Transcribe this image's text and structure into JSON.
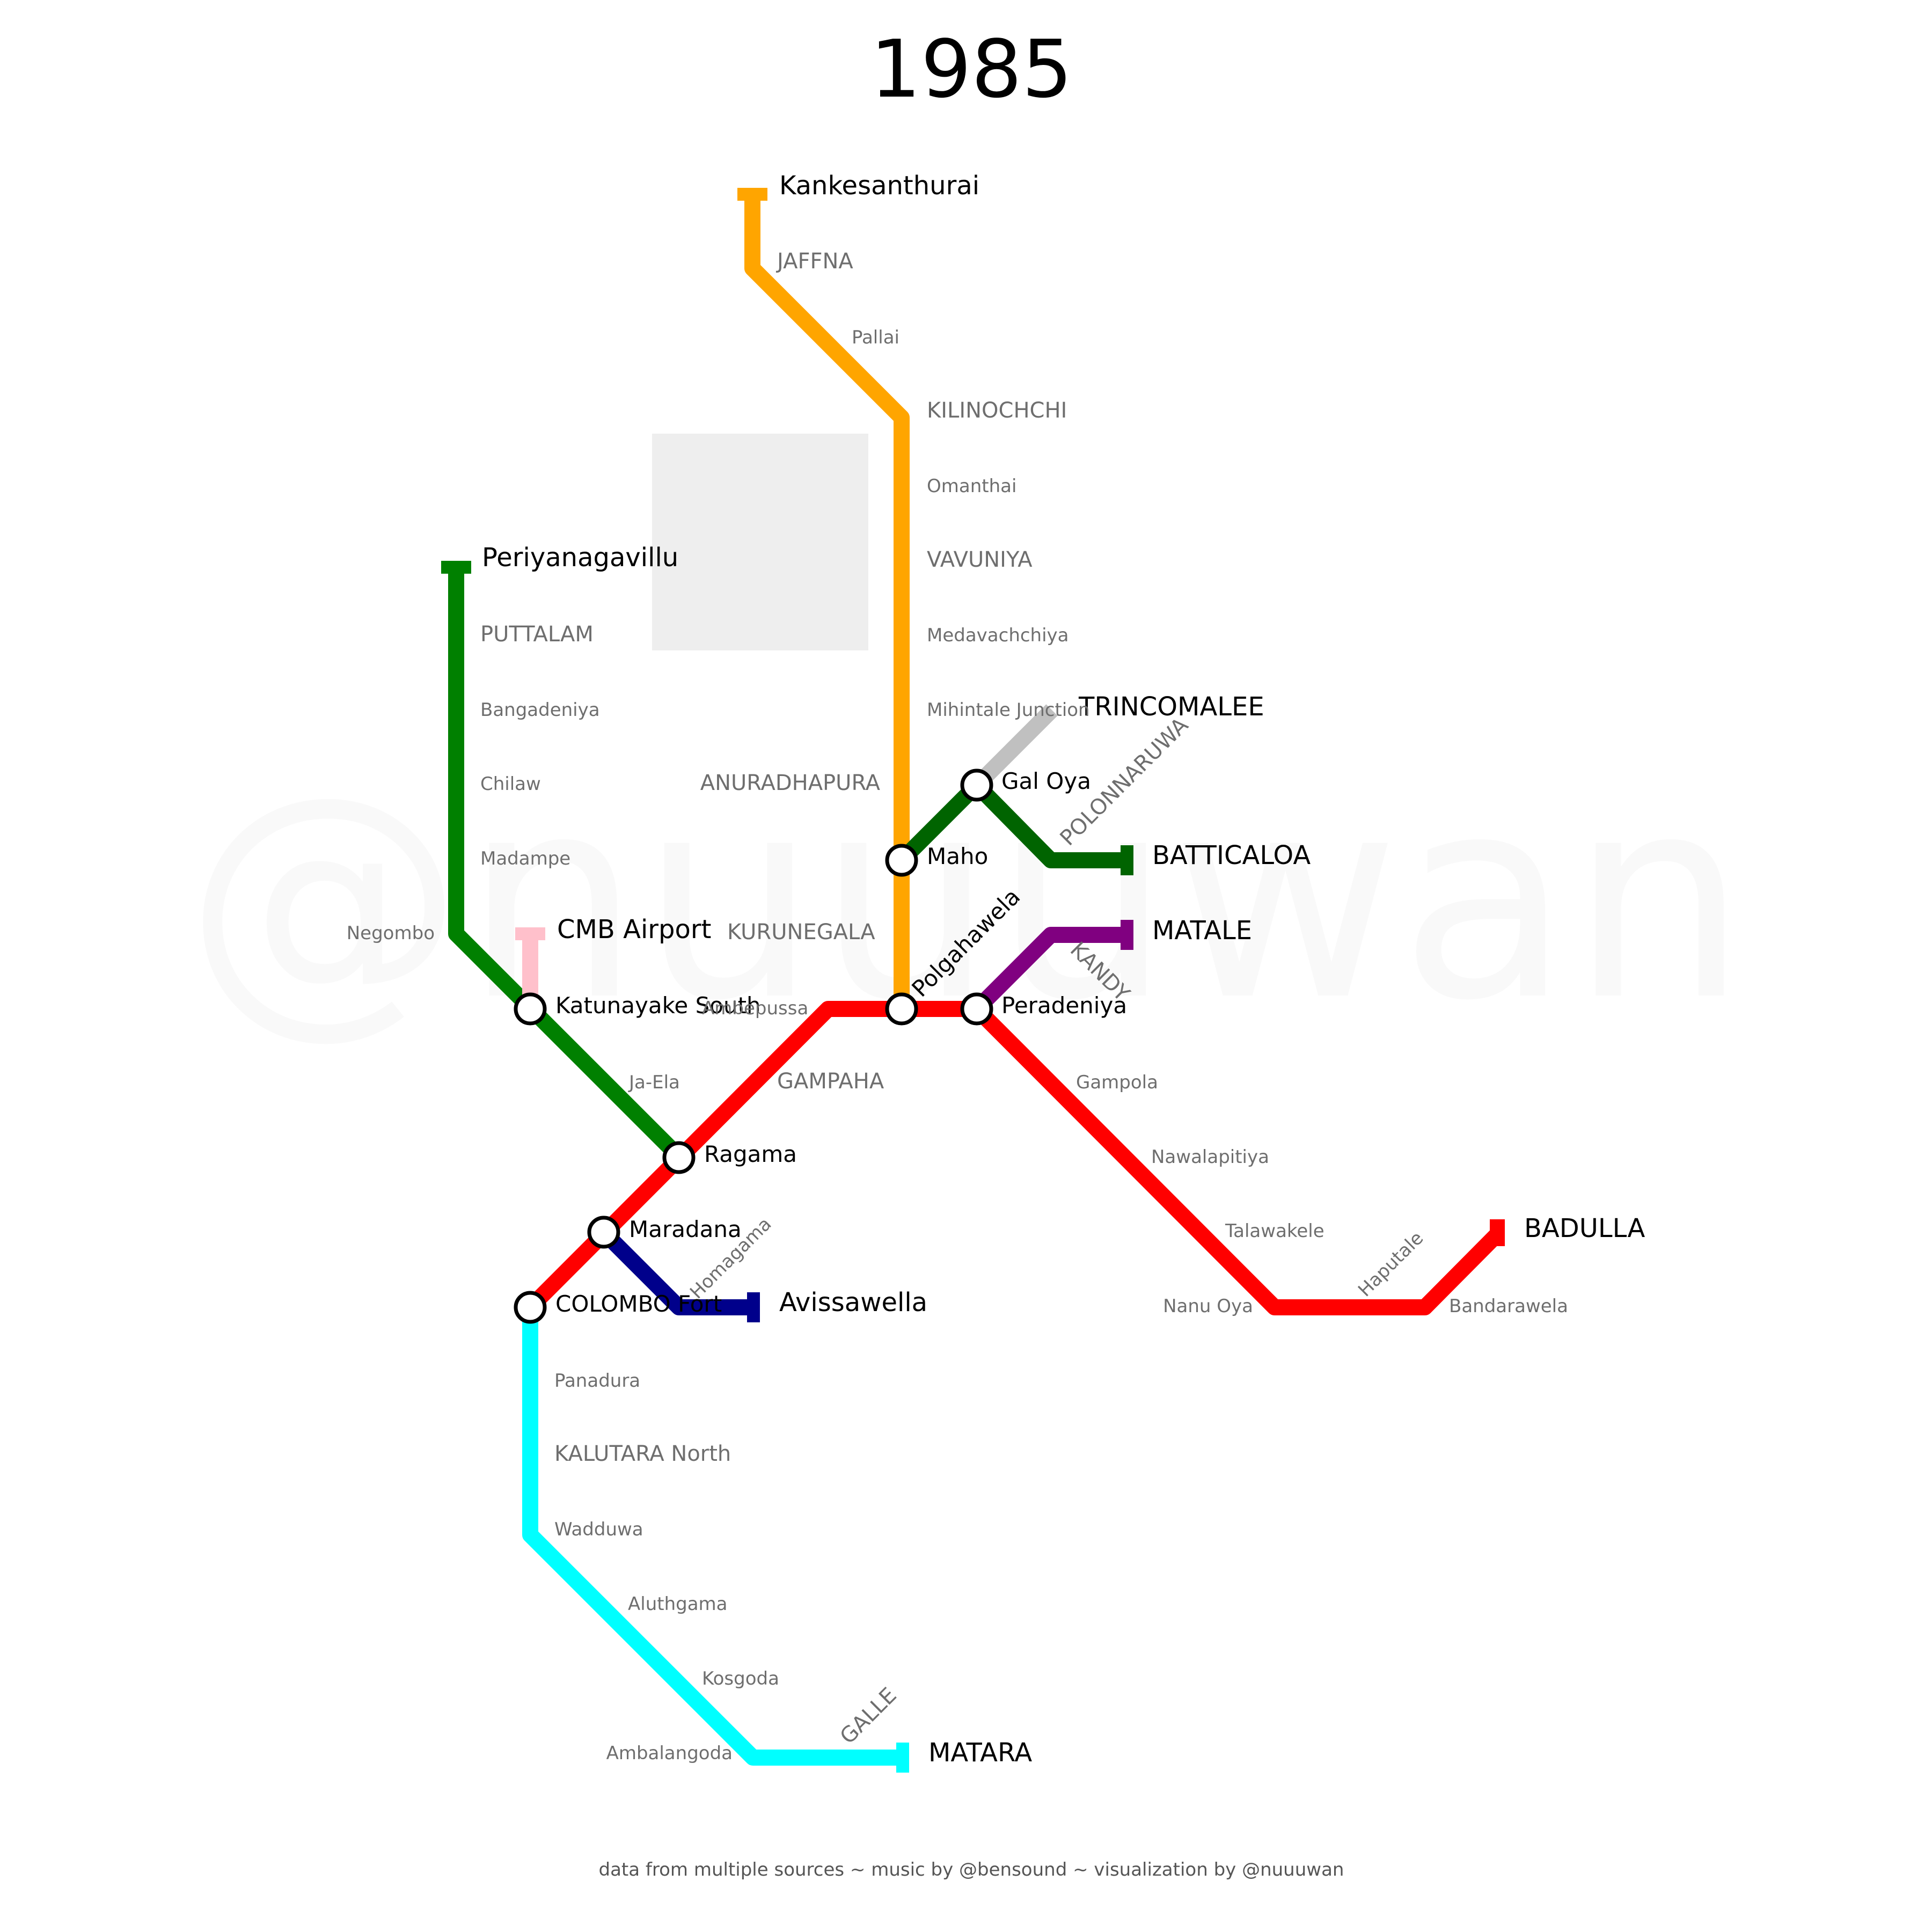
{
  "title": "1985",
  "watermark": "@nuuuwan",
  "footer": "data from multiple sources ~ music by @bensound ~ visualization by @nuuuwan",
  "colors": {
    "background": "#ffffff",
    "overlay_box": "#eeeeee",
    "station_fill": "#ffffff",
    "station_stroke": "#000000"
  },
  "lines": [
    {
      "id": "northern",
      "color": "#ffa500"
    },
    {
      "id": "puttalam",
      "color": "#008000"
    },
    {
      "id": "airport",
      "color": "#ffc0cb"
    },
    {
      "id": "main",
      "color": "#ff0000"
    },
    {
      "id": "kelani-valley",
      "color": "#00008b"
    },
    {
      "id": "coastal",
      "color": "#00ffff"
    },
    {
      "id": "batticaloa",
      "color": "#006400"
    },
    {
      "id": "trincomalee",
      "color": "#c0c0c0"
    },
    {
      "id": "matale",
      "color": "#800080"
    }
  ],
  "terminals": {
    "kankesanthurai": "Kankesanthurai",
    "periyanagavillu": "Periyanagavillu",
    "cmb_airport": "CMB Airport",
    "trincomalee": "TRINCOMALEE",
    "batticaloa": "BATTICALOA",
    "matale": "MATALE",
    "badulla": "BADULLA",
    "avissawella": "Avissawella",
    "matara": "MATARA"
  },
  "junctions": {
    "maho": "Maho",
    "gal_oya": "Gal Oya",
    "polgahawela": "Polgahawela",
    "peradeniya": "Peradeniya",
    "katunayake_south": "Katunayake South",
    "ragama": "Ragama",
    "maradana": "Maradana",
    "colombo_fort": "COLOMBO Fort"
  },
  "regions": {
    "jaffna": "JAFFNA",
    "kilinochchi": "KILINOCHCHI",
    "vavuniya": "VAVUNIYA",
    "puttalam": "PUTTALAM",
    "anuradhapura": "ANURADHAPURA",
    "polonnaruwa": "POLONNARUWA",
    "kurunegala": "KURUNEGALA",
    "kandy": "KANDY",
    "gampaha": "GAMPAHA",
    "kalutara": "KALUTARA North",
    "galle": "GALLE"
  },
  "stations": {
    "pallai": "Pallai",
    "omanthai": "Omanthai",
    "medavachchiya": "Medavachchiya",
    "mihintale": "Mihintale Junction",
    "bangadeniya": "Bangadeniya",
    "chilaw": "Chilaw",
    "madampe": "Madampe",
    "negombo": "Negombo",
    "ambepussa": "Ambepussa",
    "ja_ela": "Ja-Ela",
    "gampola": "Gampola",
    "nawalapitiya": "Nawalapitiya",
    "talawakele": "Talawakele",
    "nanu_oya": "Nanu Oya",
    "haputale": "Haputale",
    "bandarawela": "Bandarawela",
    "homagama": "Homagama",
    "panadura": "Panadura",
    "wadduwa": "Wadduwa",
    "aluthgama": "Aluthgama",
    "kosgoda": "Kosgoda",
    "ambalangoda": "Ambalangoda"
  }
}
